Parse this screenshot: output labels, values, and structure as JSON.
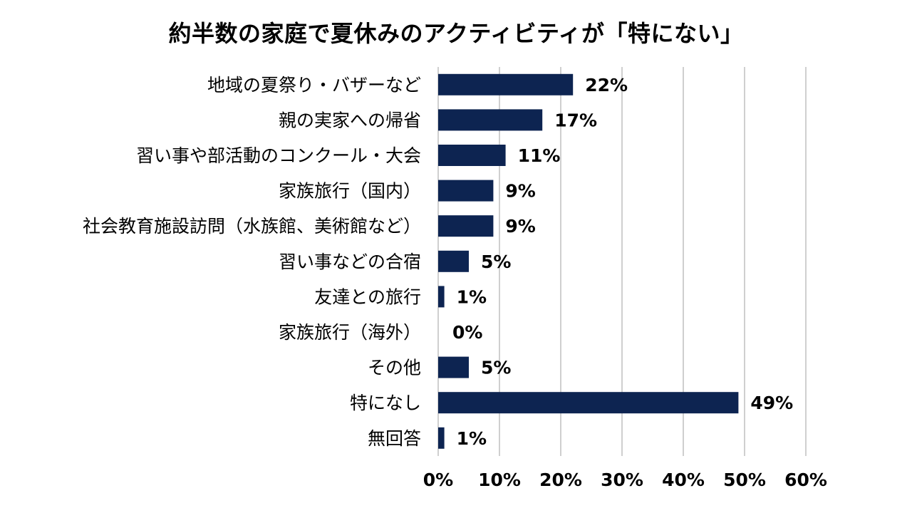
{
  "chart_data": {
    "type": "bar",
    "orientation": "horizontal",
    "title": "約半数の家庭で夏休みのアクティビティが「特にない」",
    "categories": [
      "地域の夏祭り・バザーなど",
      "親の実家への帰省",
      "習い事や部活動のコンクール・大会",
      "家族旅行（国内）",
      "社会教育施設訪問（水族館、美術館など）",
      "習い事などの合宿",
      "友達との旅行",
      "家族旅行（海外）",
      "その他",
      "特になし",
      "無回答"
    ],
    "values": [
      22,
      17,
      11,
      9,
      9,
      5,
      1,
      0,
      5,
      49,
      1
    ],
    "value_labels": [
      "22%",
      "17%",
      "11%",
      "9%",
      "9%",
      "5%",
      "1%",
      "0%",
      "5%",
      "49%",
      "1%"
    ],
    "xlim": [
      0,
      60
    ],
    "xticks": [
      0,
      10,
      20,
      30,
      40,
      50,
      60
    ],
    "xtick_labels": [
      "0%",
      "10%",
      "20%",
      "30%",
      "40%",
      "50%",
      "60%"
    ],
    "grid": true,
    "legend": "none",
    "bar_color": "#0d2451"
  }
}
